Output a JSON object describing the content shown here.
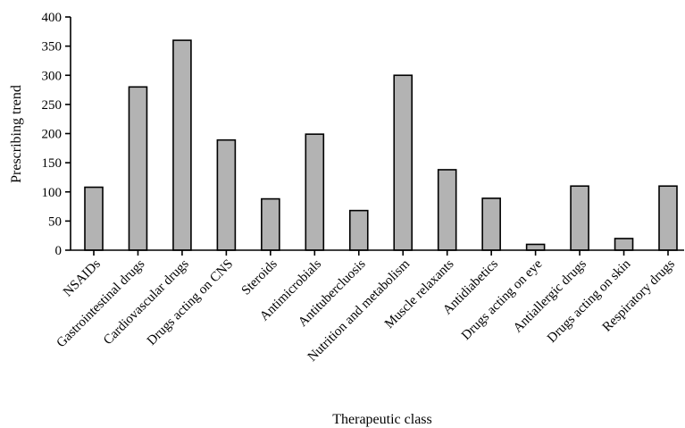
{
  "chart_data": {
    "type": "bar",
    "title": "",
    "xlabel": "Therapeutic class",
    "ylabel": "Prescribing trend",
    "ylim": [
      0,
      400
    ],
    "yticks": [
      0,
      50,
      100,
      150,
      200,
      250,
      300,
      350,
      400
    ],
    "grid": false,
    "categories": [
      "NSAIDs",
      "Gastrointestinal drugs",
      "Cardiovascular drugs",
      "Drugs acting on CNS",
      "Steroids",
      "Antimicrobials",
      "Antitubercluosis",
      "Nutrition and metabolism",
      "Muscle relaxants",
      "Antidiabetics",
      "Drugs acting on eye",
      "Antiallergic drugs",
      "Drugs acting on skin",
      "Respiratory drugs"
    ],
    "values": [
      108,
      280,
      360,
      189,
      88,
      199,
      68,
      300,
      138,
      89,
      10,
      110,
      20,
      110
    ],
    "colors": {
      "bar_fill": "#b3b3b3",
      "bar_stroke": "#000000"
    }
  }
}
